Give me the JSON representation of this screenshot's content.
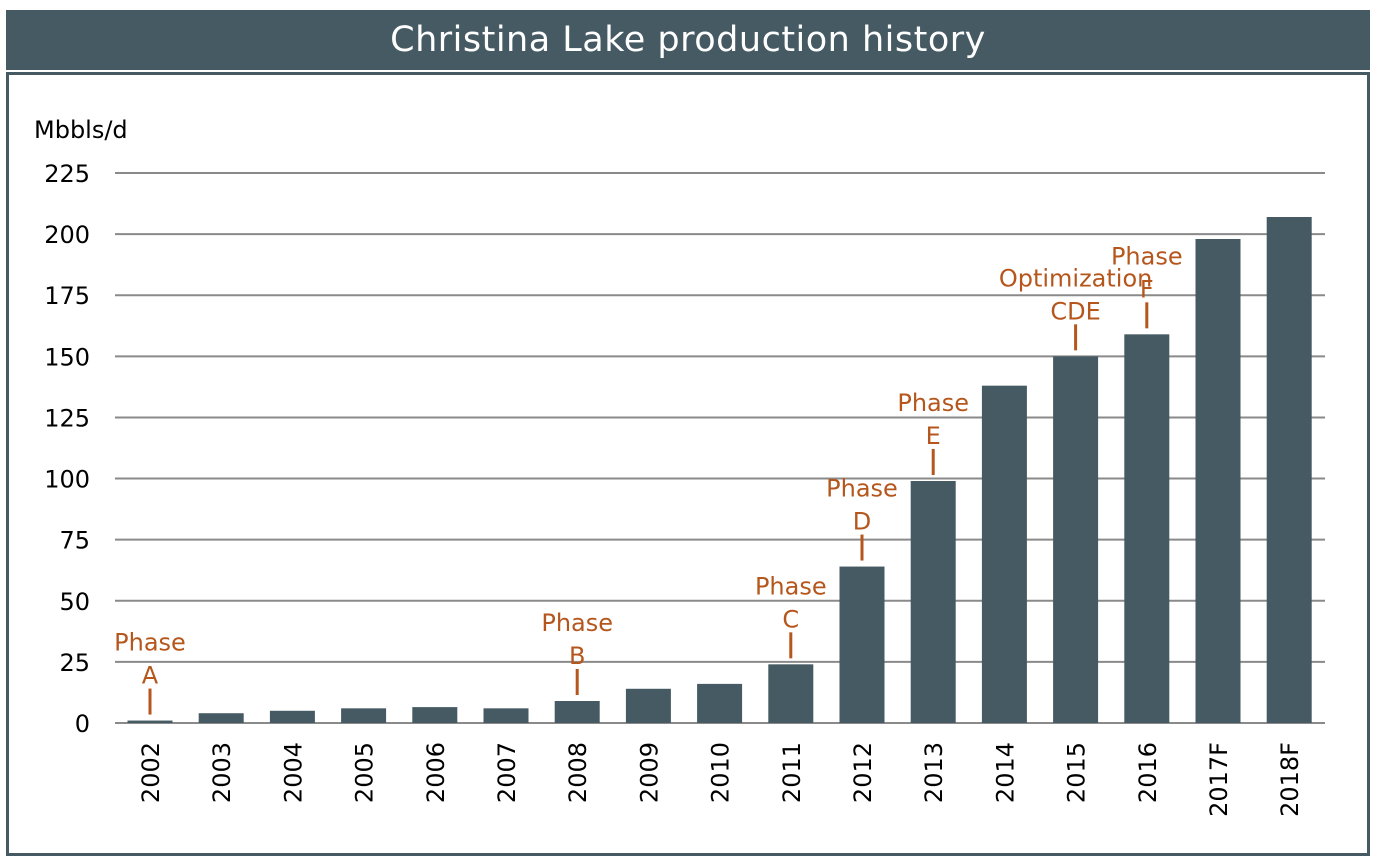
{
  "header": {
    "title": "Christina Lake production history"
  },
  "colors": {
    "bar": "#455a62",
    "annotation": "#b5561c",
    "grid": "#8a8a8a",
    "title_bg": "#455a62"
  },
  "chart_data": {
    "type": "bar",
    "title": "Christina Lake production history",
    "ylabel": "Mbbls/d",
    "xlabel": "",
    "ylim": [
      0,
      225
    ],
    "yticks": [
      0,
      25,
      50,
      75,
      100,
      125,
      150,
      175,
      200,
      225
    ],
    "grid": true,
    "categories": [
      "2002",
      "2003",
      "2004",
      "2005",
      "2006",
      "2007",
      "2008",
      "2009",
      "2010",
      "2011",
      "2012",
      "2013",
      "2014",
      "2015",
      "2016",
      "2017F",
      "2018F"
    ],
    "values": [
      1,
      4,
      5,
      6,
      6.5,
      6,
      9,
      14,
      16,
      24,
      64,
      99,
      138,
      150,
      159,
      198,
      207
    ],
    "annotations": [
      {
        "category": "2002",
        "lines": [
          "Phase",
          "A"
        ]
      },
      {
        "category": "2008",
        "lines": [
          "Phase",
          "B"
        ]
      },
      {
        "category": "2011",
        "lines": [
          "Phase",
          "C"
        ]
      },
      {
        "category": "2012",
        "lines": [
          "Phase",
          "D"
        ]
      },
      {
        "category": "2013",
        "lines": [
          "Phase",
          "E"
        ]
      },
      {
        "category": "2015",
        "lines": [
          "Optimization",
          "CDE"
        ]
      },
      {
        "category": "2016",
        "lines": [
          "Phase",
          "F"
        ]
      }
    ]
  }
}
